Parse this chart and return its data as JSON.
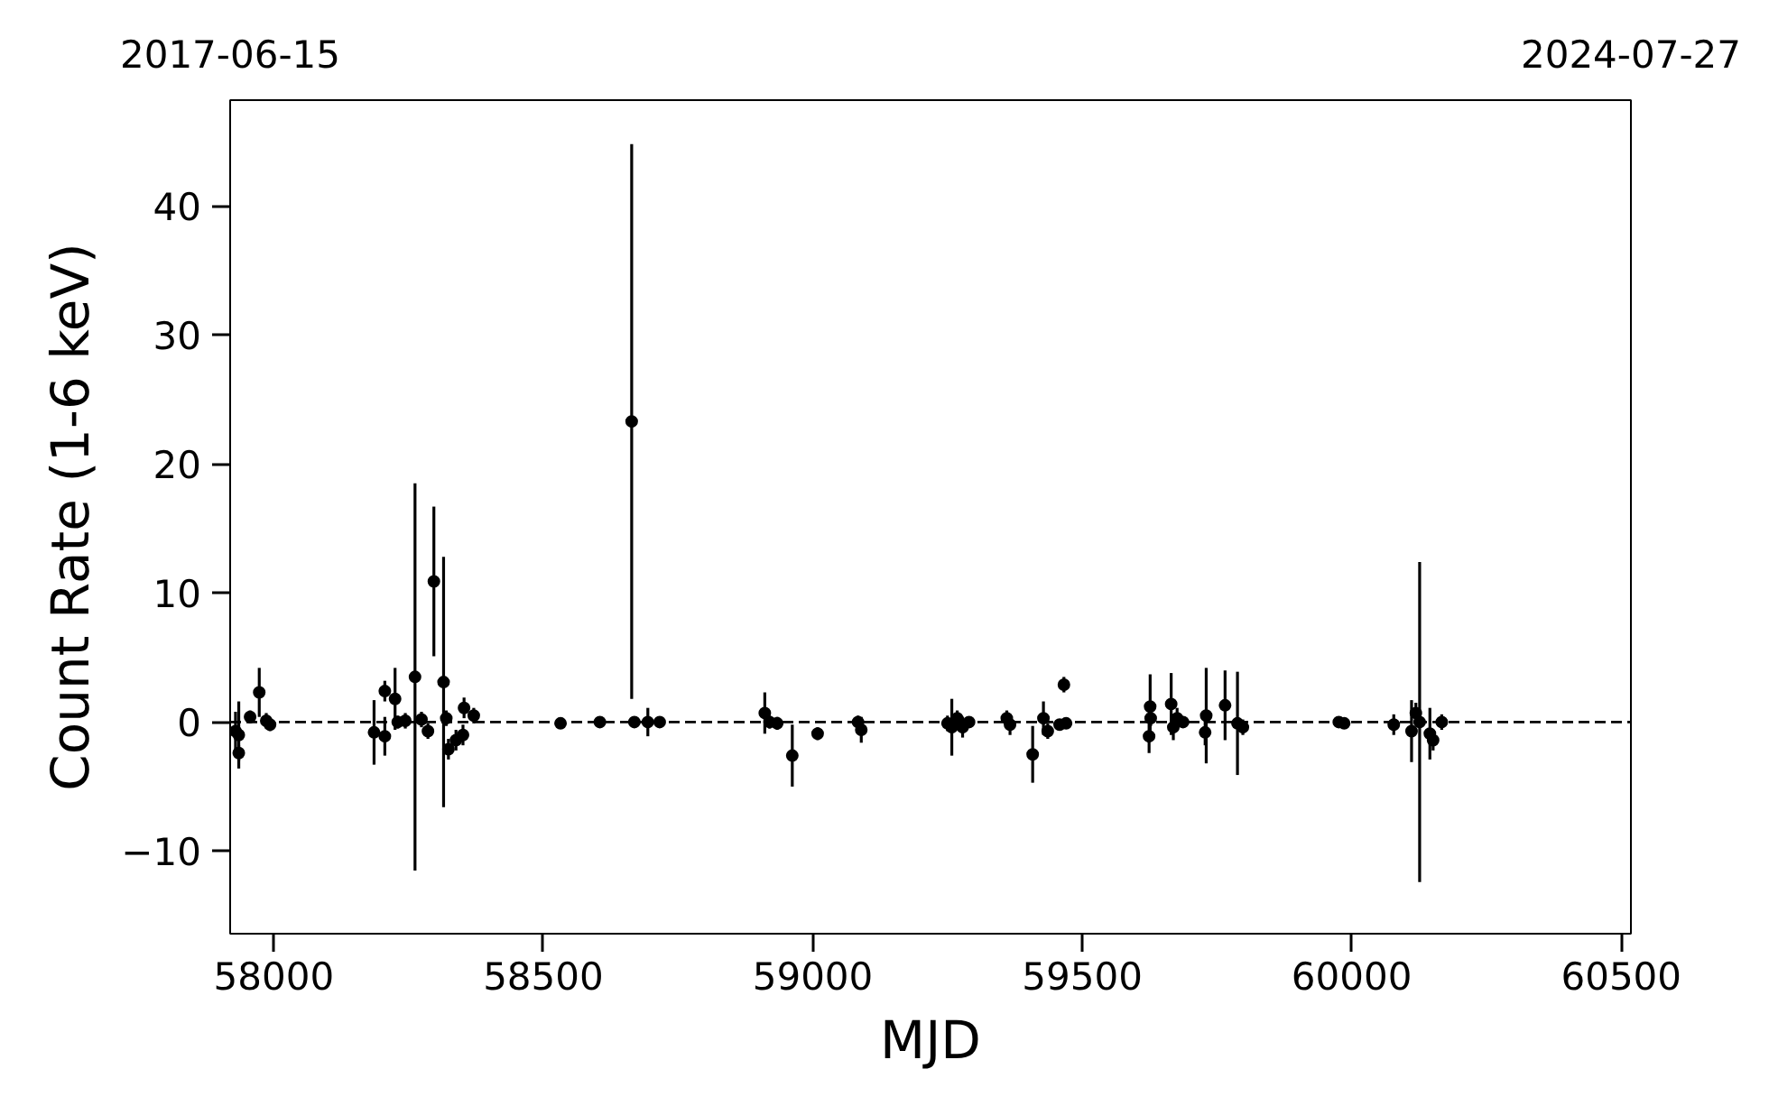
{
  "chart_data": {
    "type": "scatter",
    "xlabel": "MJD",
    "ylabel": "Count Rate (1-6 keV)",
    "x": [
      57929,
      57935,
      57935,
      57956,
      57973,
      57986,
      57993,
      58186,
      58206,
      58206,
      58225,
      58230,
      58244,
      58262,
      58274,
      58286,
      58297,
      58315,
      58320,
      58324,
      58338,
      58351,
      58353,
      58371,
      58532,
      58605,
      58664,
      58669,
      58694,
      58716,
      58911,
      58920,
      58934,
      58962,
      59009,
      59090,
      59084,
      59250,
      59258,
      59268,
      59278,
      59290,
      59360,
      59366,
      59408,
      59428,
      59436,
      59458,
      59466,
      59470,
      59624,
      59626,
      59627,
      59665,
      59669,
      59676,
      59687,
      59728,
      59730,
      59765,
      59788,
      59798,
      59976,
      59986,
      60078,
      60111,
      60119,
      60126,
      60145,
      60151,
      60167
    ],
    "values": [
      -0.7,
      -1.0,
      -2.4,
      0.4,
      2.3,
      0.1,
      -0.2,
      -0.8,
      2.4,
      -1.1,
      1.8,
      0.0,
      0.1,
      3.5,
      0.2,
      -0.7,
      10.9,
      3.1,
      0.3,
      -2.1,
      -1.4,
      -1.0,
      1.1,
      0.5,
      -0.1,
      0.0,
      23.3,
      0.0,
      0.0,
      0.0,
      0.7,
      0.0,
      -0.1,
      -2.6,
      -0.9,
      -0.6,
      0.0,
      -0.1,
      -0.4,
      0.3,
      -0.4,
      0.0,
      0.3,
      -0.2,
      -2.5,
      0.3,
      -0.7,
      -0.2,
      2.9,
      -0.1,
      -1.1,
      1.2,
      0.3,
      1.4,
      -0.4,
      0.3,
      0.0,
      -0.8,
      0.5,
      1.3,
      -0.1,
      -0.4,
      0.0,
      -0.1,
      -0.2,
      -0.7,
      0.7,
      0.0,
      -0.9,
      -1.4,
      0.0
    ],
    "errors": [
      1.5,
      2.6,
      0.6,
      0.5,
      1.9,
      0.6,
      0.5,
      2.5,
      0.8,
      1.5,
      2.4,
      0.5,
      0.6,
      15.0,
      0.6,
      0.6,
      5.8,
      9.7,
      0.6,
      0.8,
      0.8,
      0.8,
      0.8,
      0.6,
      0.3,
      0.3,
      21.5,
      0.4,
      1.1,
      0.4,
      1.6,
      0.5,
      0.5,
      2.4,
      0.5,
      1.0,
      0.5,
      0.6,
      2.2,
      0.6,
      0.8,
      0.4,
      0.6,
      0.8,
      2.2,
      1.3,
      0.6,
      0.4,
      0.6,
      0.4,
      1.3,
      2.5,
      0.6,
      2.4,
      1.0,
      0.8,
      0.4,
      1.0,
      3.7,
      2.7,
      4.0,
      0.6,
      0.4,
      0.4,
      0.8,
      2.4,
      0.8,
      12.4,
      2.0,
      0.8,
      0.6
    ],
    "color": "#000000",
    "marker": "circle",
    "grid": false,
    "xlim": [
      57919,
      60518
    ],
    "xticks": [
      58000,
      58500,
      59000,
      59500,
      60000,
      60500
    ],
    "ylim": [
      -16.4,
      48.2
    ],
    "yticks": [
      {
        "value": -10,
        "label": "−10"
      },
      0,
      10,
      20,
      30,
      40
    ],
    "x2lim": [
      "2017-06-15",
      "2024-07-27"
    ],
    "x2ticks": [
      "2017-06-15",
      "2024-07-27"
    ],
    "ref_lines": [
      {
        "axis": "y",
        "value": 0,
        "color": "#000000",
        "line_style": "dashed"
      }
    ]
  }
}
